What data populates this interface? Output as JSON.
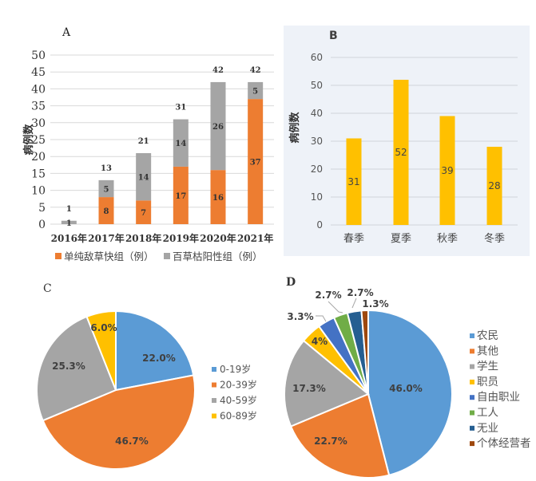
{
  "chart_data": [
    {
      "panel": "A",
      "type": "bar",
      "stacked": true,
      "title": "",
      "panel_label": "A",
      "xlabel": "",
      "ylabel": "病例数",
      "ylim": [
        0,
        50
      ],
      "yticks": [
        0,
        5,
        10,
        15,
        20,
        25,
        30,
        35,
        40,
        45,
        50
      ],
      "grid": true,
      "categories": [
        "2016年",
        "2017年",
        "2018年",
        "2019年",
        "2020年",
        "2021年"
      ],
      "series": [
        {
          "name": "单纯敌草快组（例）",
          "color": "#ED7D31",
          "values": [
            0,
            8,
            7,
            17,
            16,
            37
          ]
        },
        {
          "name": "百草枯阳性组（例）",
          "color": "#A5A5A5",
          "values": [
            1,
            5,
            14,
            14,
            26,
            5
          ]
        }
      ],
      "totals": [
        1,
        13,
        21,
        31,
        42,
        42
      ],
      "legend": "bottom"
    },
    {
      "panel": "B",
      "type": "bar",
      "title": "",
      "panel_label": "B",
      "xlabel": "",
      "ylabel": "病例数",
      "ylim": [
        0,
        60
      ],
      "yticks": [
        0,
        10,
        20,
        30,
        40,
        50,
        60
      ],
      "grid": true,
      "categories": [
        "春季",
        "夏季",
        "秋季",
        "冬季"
      ],
      "values": [
        31,
        52,
        39,
        28
      ],
      "color": "#FFC000",
      "background": "#EEF2F8"
    },
    {
      "panel": "C",
      "type": "pie",
      "title": "",
      "panel_label": "C",
      "slices": [
        {
          "label": "0-19岁",
          "value": 22.0,
          "display": "22.0%",
          "color": "#5B9BD5"
        },
        {
          "label": "20-39岁",
          "value": 46.7,
          "display": "46.7%",
          "color": "#ED7D31"
        },
        {
          "label": "40-59岁",
          "value": 25.3,
          "display": "25.3%",
          "color": "#A5A5A5"
        },
        {
          "label": "60-89岁",
          "value": 6.0,
          "display": "6.0%",
          "color": "#FFC000"
        }
      ],
      "legend": "right"
    },
    {
      "panel": "D",
      "type": "pie",
      "title": "",
      "panel_label": "D",
      "slices": [
        {
          "label": "农民",
          "value": 46.0,
          "display": "46.0%",
          "color": "#5B9BD5"
        },
        {
          "label": "其他",
          "value": 22.7,
          "display": "22.7%",
          "color": "#ED7D31"
        },
        {
          "label": "学生",
          "value": 17.3,
          "display": "17.3%",
          "color": "#A5A5A5"
        },
        {
          "label": "职员",
          "value": 4.0,
          "display": "4%",
          "color": "#FFC000"
        },
        {
          "label": "自由职业",
          "value": 3.3,
          "display": "3.3%",
          "color": "#4472C4"
        },
        {
          "label": "工人",
          "value": 2.7,
          "display": "2.7%",
          "color": "#70AD47"
        },
        {
          "label": "无业",
          "value": 2.7,
          "display": "2.7%",
          "color": "#255E91"
        },
        {
          "label": "个体经营者",
          "value": 1.3,
          "display": "1.3%",
          "color": "#9E480E"
        }
      ],
      "legend": "right"
    }
  ]
}
